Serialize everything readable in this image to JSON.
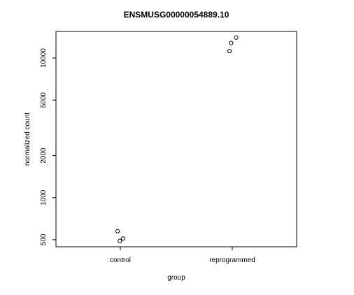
{
  "chart_data": {
    "type": "scatter",
    "title": "ENSMUSG00000054889.10",
    "xlabel": "group",
    "ylabel": "normalized count",
    "categories": [
      "control",
      "reprogrammed"
    ],
    "y_scale": "log",
    "ylim": [
      445,
      15500
    ],
    "y_ticks": [
      500,
      1000,
      2000,
      5000,
      10000
    ],
    "grid": false,
    "points": [
      {
        "group": "control",
        "jitter": -0.05,
        "y": 575
      },
      {
        "group": "control",
        "jitter": 0.05,
        "y": 510
      },
      {
        "group": "control",
        "jitter": -0.01,
        "y": 490
      },
      {
        "group": "reprogrammed",
        "jitter": -0.05,
        "y": 11200
      },
      {
        "group": "reprogrammed",
        "jitter": -0.02,
        "y": 12800
      },
      {
        "group": "reprogrammed",
        "jitter": 0.07,
        "y": 14000
      }
    ]
  }
}
